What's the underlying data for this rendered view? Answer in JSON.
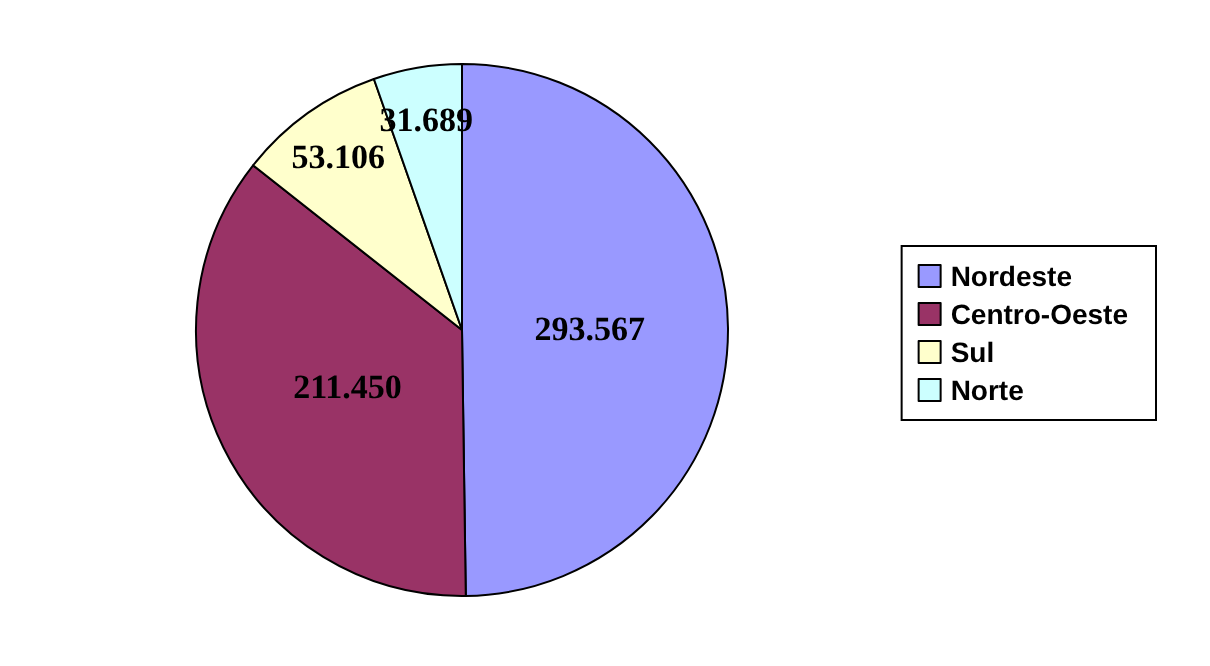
{
  "chart_data": {
    "type": "pie",
    "categories": [
      "Nordeste",
      "Centro-Oeste",
      "Sul",
      "Norte"
    ],
    "values": [
      293567,
      211450,
      53106,
      31689
    ],
    "value_labels": [
      "293.567",
      "211.450",
      "53.106",
      "31.689"
    ],
    "colors": [
      "#9999ff",
      "#993366",
      "#ffffcc",
      "#ccffff"
    ],
    "legend": "right"
  }
}
